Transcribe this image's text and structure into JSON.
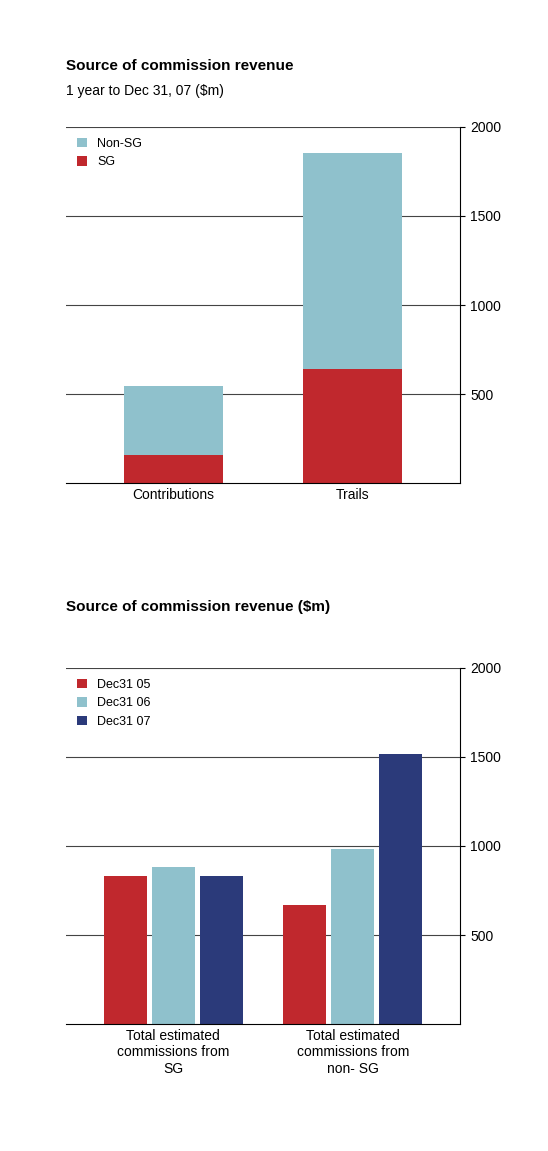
{
  "chart_data": [
    {
      "type": "bar",
      "title": "Source of commission revenue",
      "subtitle": "1 year to Dec 31, 07 ($m)",
      "stacked": true,
      "grid": true,
      "legend": "upper left",
      "categories": [
        "Contributions",
        "Trails"
      ],
      "series": [
        {
          "name": "SG",
          "color": "#c0282d",
          "values": [
            160,
            640
          ]
        },
        {
          "name": "Non-SG",
          "color": "#8fc1cc",
          "values": [
            385,
            1210
          ]
        }
      ],
      "ylim": [
        0,
        2000
      ],
      "yticks": [
        500,
        1000,
        1500,
        2000
      ]
    },
    {
      "type": "bar",
      "title": "Source of commission revenue ($m)",
      "stacked": false,
      "grid": true,
      "legend": "upper left",
      "categories": [
        "Total estimated commissions from SG",
        "Total estimated commissions from non- SG"
      ],
      "series": [
        {
          "name": "Dec31 05",
          "color": "#c0282d",
          "values": [
            830,
            670
          ]
        },
        {
          "name": "Dec31 06",
          "color": "#8fc1cc",
          "values": [
            885,
            985
          ]
        },
        {
          "name": "Dec31 07",
          "color": "#2b3a7a",
          "values": [
            830,
            1515
          ]
        }
      ],
      "ylim": [
        0,
        2000
      ],
      "yticks": [
        500,
        1000,
        1500,
        2000
      ]
    }
  ]
}
